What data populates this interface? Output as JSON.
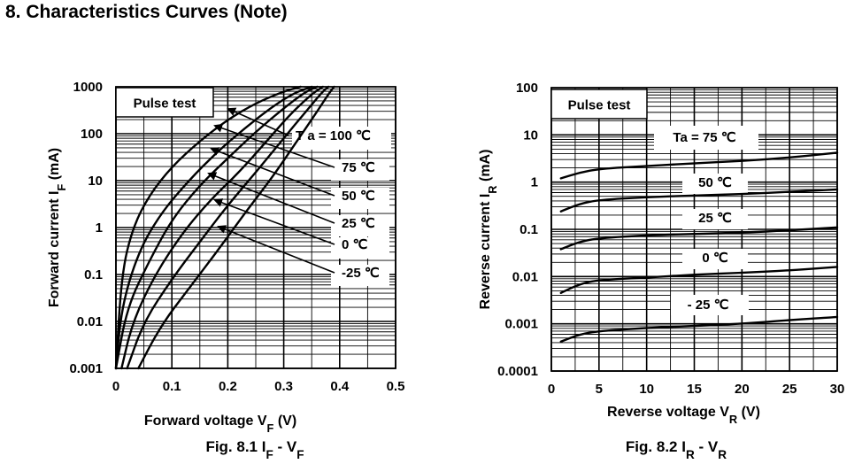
{
  "page": {
    "title": "8.  Characteristics Curves (Note)"
  },
  "chart_data": [
    {
      "type": "line",
      "figure_number": "Fig. 8.1",
      "figure_title": "IF - VF",
      "xlabel": "Forward voltage  VF   (V)",
      "ylabel": "Forward current  IF   (mA)",
      "x_scale": "linear",
      "y_scale": "log",
      "xlim": [
        0,
        0.5
      ],
      "ylim": [
        0.001,
        1000
      ],
      "x_ticks": [
        "0",
        "0.1",
        "0.2",
        "0.3",
        "0.4",
        "0.5"
      ],
      "y_ticks": [
        "0.001",
        "0.01",
        "0.1",
        "1",
        "10",
        "100",
        "1000"
      ],
      "box_label": "Pulse test",
      "series": [
        {
          "name": "Ta = 100 ℃",
          "label": "T a = 100 ℃",
          "x": [
            0.0,
            0.01,
            0.03,
            0.06,
            0.1,
            0.15,
            0.2,
            0.25,
            0.3,
            0.33
          ],
          "y": [
            0.001,
            0.1,
            1,
            5,
            20,
            70,
            200,
            450,
            800,
            1000
          ]
        },
        {
          "name": "Ta = 75 ℃",
          "label": "75 ℃",
          "x": [
            0.0,
            0.01,
            0.04,
            0.08,
            0.13,
            0.18,
            0.23,
            0.28,
            0.32,
            0.35
          ],
          "y": [
            0.001,
            0.02,
            0.3,
            2,
            10,
            40,
            130,
            380,
            750,
            1000
          ]
        },
        {
          "name": "Ta = 50 ℃",
          "label": "50 ℃",
          "x": [
            0.0,
            0.02,
            0.06,
            0.1,
            0.15,
            0.2,
            0.25,
            0.3,
            0.34,
            0.36
          ],
          "y": [
            0.001,
            0.02,
            0.2,
            1.5,
            8,
            30,
            110,
            350,
            800,
            1000
          ]
        },
        {
          "name": "Ta = 25 ℃",
          "label": "25 ℃",
          "x": [
            0.01,
            0.03,
            0.07,
            0.12,
            0.17,
            0.22,
            0.27,
            0.31,
            0.35,
            0.37
          ],
          "y": [
            0.001,
            0.01,
            0.1,
            0.8,
            4,
            15,
            70,
            250,
            700,
            1000
          ]
        },
        {
          "name": "Ta = 0 ℃",
          "label": "0 ℃",
          "x": [
            0.02,
            0.05,
            0.1,
            0.15,
            0.2,
            0.25,
            0.3,
            0.34,
            0.37,
            0.38
          ],
          "y": [
            0.001,
            0.01,
            0.08,
            0.5,
            3,
            15,
            80,
            300,
            800,
            1000
          ]
        },
        {
          "name": "Ta = -25 ℃",
          "label": "-25 ℃",
          "x": [
            0.04,
            0.08,
            0.13,
            0.18,
            0.23,
            0.28,
            0.32,
            0.36,
            0.38,
            0.39
          ],
          "y": [
            0.001,
            0.008,
            0.05,
            0.3,
            2,
            12,
            60,
            300,
            700,
            1000
          ]
        }
      ]
    },
    {
      "type": "line",
      "figure_number": "Fig. 8.2",
      "figure_title": "IR - VR",
      "xlabel": "Reverse voltage  VR   (V)",
      "ylabel": "Reverse current  IR   (mA)",
      "x_scale": "linear",
      "y_scale": "log",
      "xlim": [
        0,
        30
      ],
      "ylim": [
        0.0001,
        100
      ],
      "x_ticks": [
        "0",
        "5",
        "10",
        "15",
        "20",
        "25",
        "30"
      ],
      "y_ticks": [
        "0.0001",
        "0.001",
        "0.01",
        "0.1",
        "1",
        "10",
        "100"
      ],
      "box_label": "Pulse test",
      "series": [
        {
          "name": "Ta = 75 ℃",
          "label": "Ta = 75 ℃",
          "x": [
            1,
            3,
            5,
            10,
            15,
            20,
            25,
            30
          ],
          "y": [
            1.2,
            1.6,
            1.9,
            2.2,
            2.5,
            2.8,
            3.3,
            4.2
          ]
        },
        {
          "name": "Ta = 50 ℃",
          "label": "50 ℃",
          "x": [
            1,
            3,
            5,
            10,
            15,
            20,
            25,
            30
          ],
          "y": [
            0.24,
            0.35,
            0.42,
            0.48,
            0.52,
            0.56,
            0.62,
            0.7
          ]
        },
        {
          "name": "Ta = 25 ℃",
          "label": "25 ℃",
          "x": [
            1,
            3,
            5,
            10,
            15,
            20,
            25,
            30
          ],
          "y": [
            0.038,
            0.055,
            0.065,
            0.075,
            0.08,
            0.085,
            0.095,
            0.11
          ]
        },
        {
          "name": "Ta = 0 ℃",
          "label": "0 ℃",
          "x": [
            1,
            3,
            5,
            10,
            15,
            20,
            25,
            30
          ],
          "y": [
            0.0045,
            0.007,
            0.0085,
            0.0095,
            0.011,
            0.012,
            0.0135,
            0.016
          ]
        },
        {
          "name": "Ta = -25 ℃",
          "label": "- 25 ℃",
          "x": [
            1,
            3,
            5,
            10,
            15,
            20,
            25,
            30
          ],
          "y": [
            0.00042,
            0.0006,
            0.0007,
            0.00082,
            0.0009,
            0.001,
            0.0012,
            0.0014
          ]
        }
      ]
    }
  ]
}
